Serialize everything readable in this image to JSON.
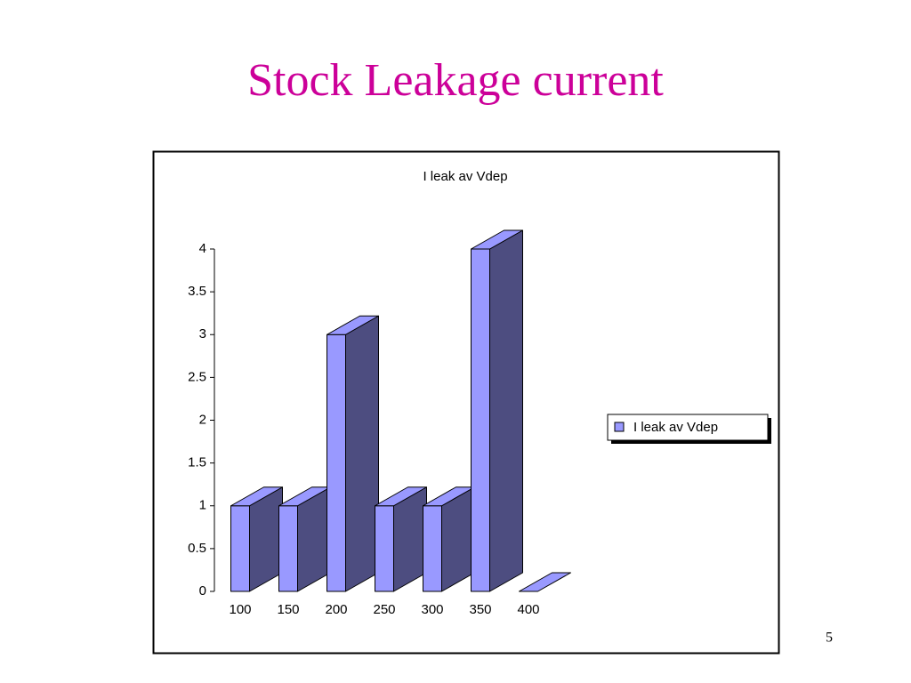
{
  "slide": {
    "title": "Stock Leakage current",
    "page_number": "5"
  },
  "chart_data": {
    "type": "bar3d",
    "title": "I leak av Vdep",
    "categories": [
      "100",
      "150",
      "200",
      "250",
      "300",
      "350",
      "400"
    ],
    "series": [
      {
        "name": "I leak av Vdep",
        "color": "#9999ff",
        "values": [
          1,
          1,
          3,
          1,
          1,
          4,
          0
        ]
      }
    ],
    "ylim": [
      0,
      4
    ],
    "yticks": [
      0,
      0.5,
      1,
      1.5,
      2,
      2.5,
      3,
      3.5,
      4
    ],
    "legend": "right"
  }
}
